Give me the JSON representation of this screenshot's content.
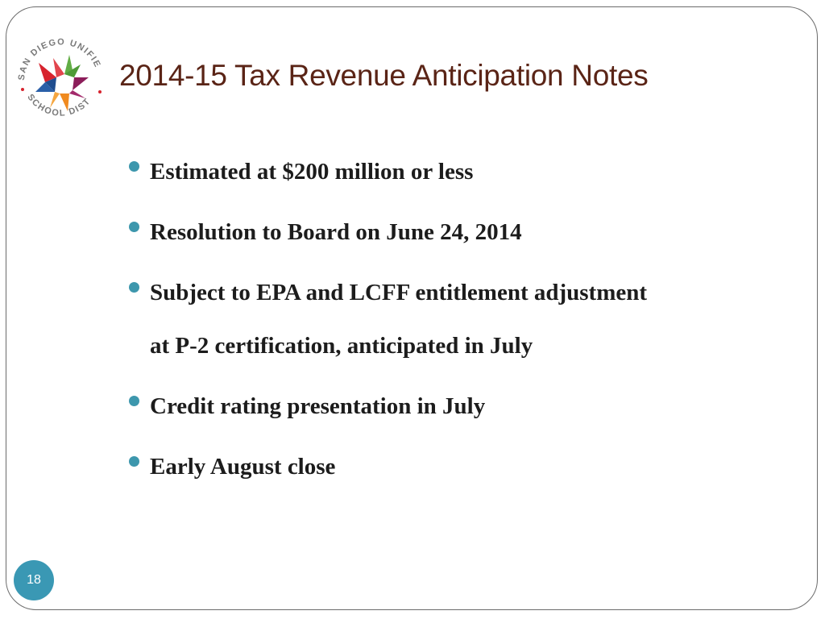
{
  "logo": {
    "text_top": "SAN DIEGO UNIFIED",
    "text_bottom": "SCHOOL DISTRICT"
  },
  "title": "2014-15 Tax Revenue Anticipation Notes",
  "bullets": [
    {
      "text": "Estimated at $200 million or less"
    },
    {
      "text": "Resolution to Board on June 24, 2014"
    },
    {
      "line1": "Subject to EPA and LCFF entitlement adjustment",
      "line2": "at P-2 certification, anticipated in July"
    },
    {
      "text": "Credit rating presentation in July"
    },
    {
      "text": "Early August close"
    }
  ],
  "page_number": "18",
  "colors": {
    "title": "#5a2416",
    "bullet": "#3d97ad",
    "badge": "#3a98b4",
    "star_red": "#d7232e",
    "star_green": "#62ad45",
    "star_purple": "#8c1d5a",
    "star_orange": "#f08a1f",
    "star_blue": "#2a5fa8"
  },
  "icons": {
    "logo": "san-diego-unified-star-logo",
    "bullet": "bullet-dot"
  }
}
